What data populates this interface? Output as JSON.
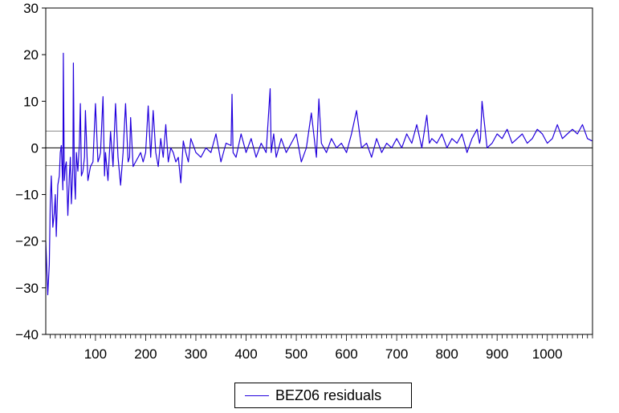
{
  "colors": {
    "series": "#2200dd",
    "bands": "#666666",
    "frame": "#000000"
  },
  "chart_data": {
    "type": "line",
    "title": "",
    "xlabel": "",
    "ylabel": "",
    "xlim": [
      1,
      1090
    ],
    "ylim": [
      -40,
      30
    ],
    "grid": false,
    "legend_position": "bottom-center",
    "yticks": [
      30,
      20,
      10,
      0,
      -10,
      -20,
      -30,
      -40
    ],
    "ytick_labels": [
      "30",
      "20",
      "10",
      "0",
      "−10",
      "−20",
      "−30",
      "−40"
    ],
    "xticks": [
      100,
      200,
      300,
      400,
      500,
      600,
      700,
      800,
      900,
      1000
    ],
    "xtick_labels": [
      "100",
      "200",
      "300",
      "400",
      "500",
      "600",
      "700",
      "800",
      "900",
      "1000"
    ],
    "reference_lines": [
      3.6,
      0,
      -3.8
    ],
    "series": [
      {
        "name": "BEZ06 residuals",
        "x": [
          1,
          5,
          8,
          10,
          12,
          15,
          18,
          20,
          22,
          25,
          28,
          30,
          32,
          35,
          36,
          38,
          40,
          42,
          45,
          48,
          50,
          52,
          55,
          56,
          58,
          60,
          62,
          65,
          68,
          70,
          72,
          75,
          78,
          80,
          85,
          90,
          95,
          100,
          105,
          108,
          110,
          115,
          118,
          120,
          125,
          130,
          135,
          140,
          145,
          150,
          155,
          160,
          165,
          168,
          170,
          175,
          180,
          185,
          190,
          195,
          200,
          205,
          210,
          215,
          220,
          225,
          230,
          235,
          240,
          245,
          250,
          255,
          260,
          265,
          270,
          275,
          280,
          285,
          290,
          300,
          310,
          320,
          330,
          340,
          350,
          360,
          370,
          372,
          374,
          380,
          390,
          400,
          410,
          420,
          430,
          440,
          448,
          450,
          455,
          460,
          470,
          480,
          490,
          500,
          510,
          520,
          530,
          540,
          545,
          550,
          560,
          570,
          580,
          590,
          600,
          610,
          620,
          630,
          640,
          650,
          660,
          670,
          680,
          690,
          700,
          710,
          720,
          730,
          740,
          750,
          760,
          765,
          770,
          780,
          790,
          800,
          810,
          820,
          830,
          840,
          850,
          860,
          865,
          867,
          870,
          880,
          890,
          900,
          910,
          920,
          930,
          940,
          950,
          960,
          970,
          980,
          990,
          1000,
          1010,
          1020,
          1030,
          1040,
          1050,
          1060,
          1070,
          1080,
          1089
        ],
        "values": [
          -20,
          -31.5,
          -25,
          -12,
          -6,
          -17,
          -14,
          -10,
          -19,
          -8,
          -6,
          -1,
          0.5,
          -9,
          20.3,
          -7,
          -4,
          -3,
          -14.5,
          -6,
          -2,
          -12,
          -4,
          18.2,
          -6,
          -11,
          -1,
          -5,
          1,
          9.5,
          -6,
          -5,
          -2,
          8,
          -7,
          -4,
          -3,
          9.5,
          -3,
          -2,
          -1,
          11,
          -6,
          -1,
          -7,
          3.5,
          -4,
          9.5,
          -2,
          -8,
          -1,
          9.5,
          -3,
          -2,
          6.5,
          -4,
          -3,
          -2,
          -1,
          -3,
          -1,
          9,
          -2,
          8,
          -1,
          -4,
          2,
          -2,
          5,
          -3,
          0,
          -1,
          -3,
          -2,
          -7.5,
          1.5,
          -1,
          -3,
          2,
          -1,
          -2,
          0,
          -1,
          3,
          -3,
          1,
          0.5,
          11.5,
          -1,
          -2,
          3,
          -1,
          2,
          -2,
          1,
          -1,
          12.7,
          -1,
          3,
          -2,
          2,
          -1,
          1,
          3,
          -3,
          0,
          7.5,
          -2,
          10.5,
          1,
          -1,
          2,
          0,
          1,
          -1,
          3,
          8,
          0,
          1,
          -2,
          2,
          -1,
          1,
          0,
          2,
          0,
          3,
          1,
          5,
          0,
          7,
          1,
          2,
          1,
          3,
          0,
          2,
          1,
          3,
          -1,
          2,
          4,
          1,
          2,
          10,
          0,
          1,
          3,
          2,
          4,
          1,
          2,
          3,
          1,
          2,
          4,
          3,
          1,
          2,
          5,
          2,
          3,
          4,
          3,
          5,
          2,
          1.5
        ]
      }
    ]
  }
}
